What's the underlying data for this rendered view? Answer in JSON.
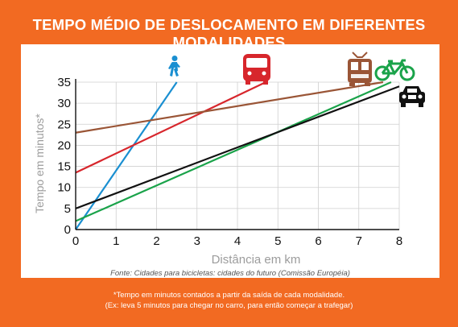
{
  "chart_data": {
    "type": "line",
    "title": "TEMPO MÉDIO DE DESLOCAMENTO EM DIFERENTES MODALIDADES",
    "xlabel": "Distância em km",
    "ylabel": "Tempo em minutos*",
    "xlim": [
      0,
      8
    ],
    "ylim": [
      0,
      35
    ],
    "xticks": [
      "0",
      "1",
      "2",
      "3",
      "4",
      "5",
      "6",
      "7",
      "8"
    ],
    "yticks": [
      "0",
      "5",
      "10",
      "15",
      "20",
      "25",
      "30",
      "35"
    ],
    "grid": true,
    "source": "Fonte: Cidades para bicicletas: cidades do futuro (Comissão Européia)",
    "series": [
      {
        "icon": "pedestrian-icon",
        "color": "#1a8fd1",
        "x": [
          0,
          2.5
        ],
        "y": [
          0,
          35
        ]
      },
      {
        "icon": "bus-icon",
        "color": "#d7262c",
        "x": [
          0,
          4.7
        ],
        "y": [
          13.5,
          35
        ]
      },
      {
        "icon": "tram-icon",
        "color": "#9a5536",
        "x": [
          0,
          7.6
        ],
        "y": [
          23,
          35
        ]
      },
      {
        "icon": "bicycle-icon",
        "color": "#1aa34a",
        "x": [
          0,
          7.8
        ],
        "y": [
          2,
          35
        ]
      },
      {
        "icon": "car-icon",
        "color": "#111111",
        "x": [
          0,
          8
        ],
        "y": [
          5,
          34
        ]
      }
    ]
  },
  "footnote": {
    "line1": "*Tempo em minutos contados a partir da saída de cada modalidade.",
    "line2": "(Ex: leva 5 minutos para chegar no carro, para então começar a trafegar)"
  }
}
